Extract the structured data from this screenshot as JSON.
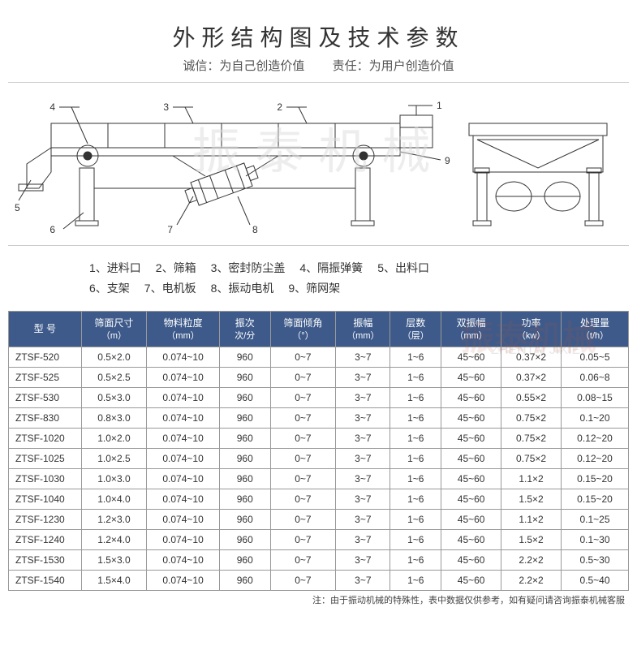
{
  "title": "外形结构图及技术参数",
  "subtitle_left": "诚信：为自己创造价值",
  "subtitle_right": "责任：为用户创造价值",
  "watermark_main": "振泰机械",
  "watermark_table": "振泰机械",
  "watermark_table2": "ZHENTAI JIXIE",
  "callouts": [
    "1",
    "2",
    "3",
    "4",
    "5",
    "6",
    "7",
    "8",
    "9"
  ],
  "legend": {
    "row1": [
      {
        "n": "1、",
        "t": "进料口"
      },
      {
        "n": "2、",
        "t": "筛箱"
      },
      {
        "n": "3、",
        "t": "密封防尘盖"
      },
      {
        "n": "4、",
        "t": "隔振弹簧"
      },
      {
        "n": "5、",
        "t": "出料口"
      }
    ],
    "row2": [
      {
        "n": "6、",
        "t": "支架"
      },
      {
        "n": "7、",
        "t": "电机板"
      },
      {
        "n": "8、",
        "t": "振动电机"
      },
      {
        "n": "9、",
        "t": "筛网架"
      }
    ]
  },
  "table": {
    "header_bg": "#3d5a8a",
    "columns": [
      {
        "label": "型  号",
        "unit": ""
      },
      {
        "label": "筛面尺寸",
        "unit": "（m）"
      },
      {
        "label": "物料粒度",
        "unit": "（mm）"
      },
      {
        "label": "振次",
        "unit": "次/分"
      },
      {
        "label": "筛面倾角",
        "unit": "（°）"
      },
      {
        "label": "振幅",
        "unit": "（mm）"
      },
      {
        "label": "层数",
        "unit": "（层）"
      },
      {
        "label": "双振幅",
        "unit": "（mm）"
      },
      {
        "label": "功率",
        "unit": "（kw）"
      },
      {
        "label": "处理量",
        "unit": "（t/h）"
      }
    ],
    "rows": [
      [
        "ZTSF-520",
        "0.5×2.0",
        "0.074~10",
        "960",
        "0~7",
        "3~7",
        "1~6",
        "45~60",
        "0.37×2",
        "0.05~5"
      ],
      [
        "ZTSF-525",
        "0.5×2.5",
        "0.074~10",
        "960",
        "0~7",
        "3~7",
        "1~6",
        "45~60",
        "0.37×2",
        "0.06~8"
      ],
      [
        "ZTSF-530",
        "0.5×3.0",
        "0.074~10",
        "960",
        "0~7",
        "3~7",
        "1~6",
        "45~60",
        "0.55×2",
        "0.08~15"
      ],
      [
        "ZTSF-830",
        "0.8×3.0",
        "0.074~10",
        "960",
        "0~7",
        "3~7",
        "1~6",
        "45~60",
        "0.75×2",
        "0.1~20"
      ],
      [
        "ZTSF-1020",
        "1.0×2.0",
        "0.074~10",
        "960",
        "0~7",
        "3~7",
        "1~6",
        "45~60",
        "0.75×2",
        "0.12~20"
      ],
      [
        "ZTSF-1025",
        "1.0×2.5",
        "0.074~10",
        "960",
        "0~7",
        "3~7",
        "1~6",
        "45~60",
        "0.75×2",
        "0.12~20"
      ],
      [
        "ZTSF-1030",
        "1.0×3.0",
        "0.074~10",
        "960",
        "0~7",
        "3~7",
        "1~6",
        "45~60",
        "1.1×2",
        "0.15~20"
      ],
      [
        "ZTSF-1040",
        "1.0×4.0",
        "0.074~10",
        "960",
        "0~7",
        "3~7",
        "1~6",
        "45~60",
        "1.5×2",
        "0.15~20"
      ],
      [
        "ZTSF-1230",
        "1.2×3.0",
        "0.074~10",
        "960",
        "0~7",
        "3~7",
        "1~6",
        "45~60",
        "1.1×2",
        "0.1~25"
      ],
      [
        "ZTSF-1240",
        "1.2×4.0",
        "0.074~10",
        "960",
        "0~7",
        "3~7",
        "1~6",
        "45~60",
        "1.5×2",
        "0.1~30"
      ],
      [
        "ZTSF-1530",
        "1.5×3.0",
        "0.074~10",
        "960",
        "0~7",
        "3~7",
        "1~6",
        "45~60",
        "2.2×2",
        "0.5~30"
      ],
      [
        "ZTSF-1540",
        "1.5×4.0",
        "0.074~10",
        "960",
        "0~7",
        "3~7",
        "1~6",
        "45~60",
        "2.2×2",
        "0.5~40"
      ]
    ]
  },
  "note": "注：由于振动机械的特殊性，表中数据仅供参考，如有疑问请咨询振泰机械客服",
  "diagram": {
    "stroke": "#333",
    "stroke_width": 1
  }
}
